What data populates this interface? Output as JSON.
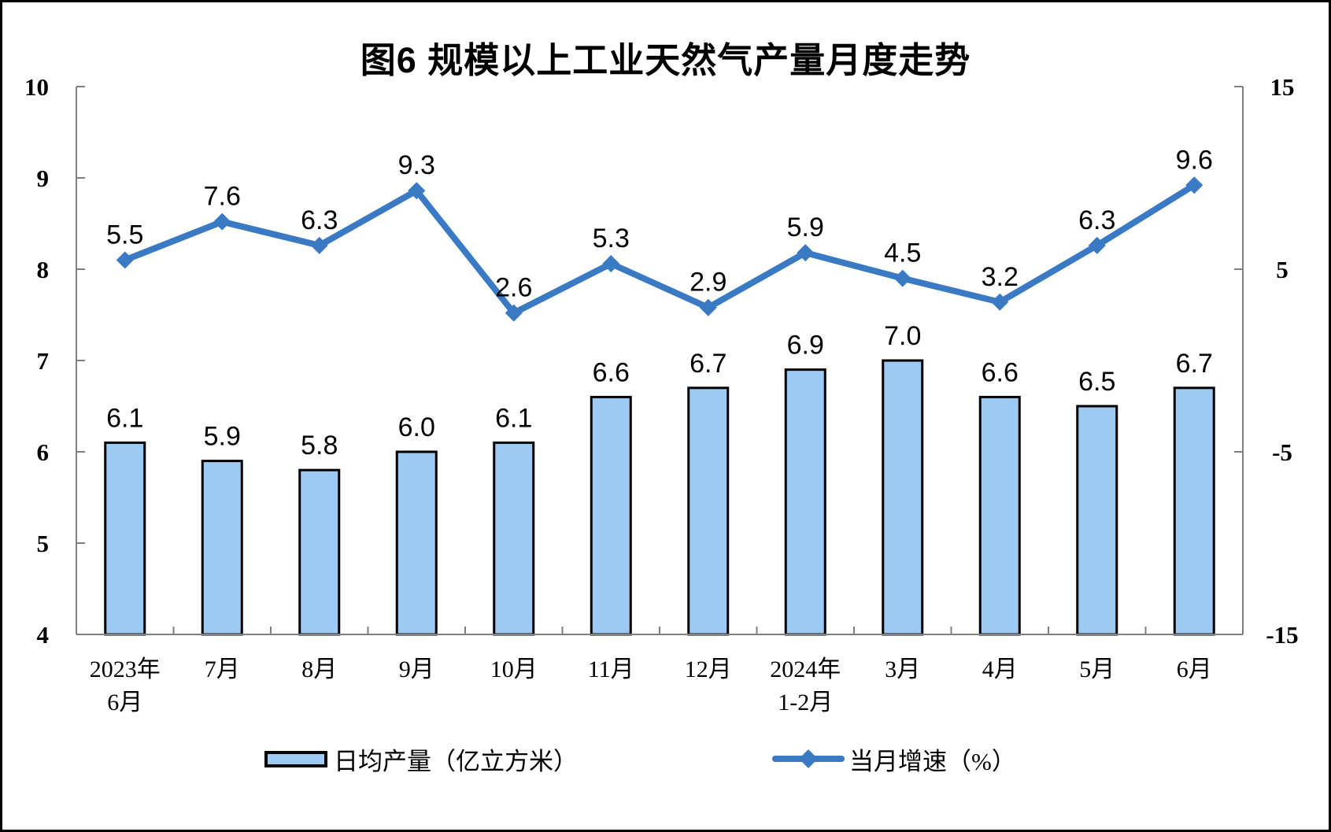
{
  "title": "图6 规模以上工业天然气产量月度走势",
  "legend": [
    {
      "type": "bar",
      "label": "日均产量（亿立方米）"
    },
    {
      "type": "line",
      "label": "当月增速（%）"
    }
  ],
  "colors": {
    "bar_fill": "#9CCAF2",
    "bar_border": "#000000",
    "line": "#3A79C3",
    "axis": "#808080",
    "text": "#000000"
  },
  "chart_data": {
    "type": "bar+line",
    "title": "图6 规模以上工业天然气产量月度走势",
    "categories": [
      [
        "2023年",
        "6月"
      ],
      [
        "7月"
      ],
      [
        "8月"
      ],
      [
        "9月"
      ],
      [
        "10月"
      ],
      [
        "11月"
      ],
      [
        "12月"
      ],
      [
        "2024年",
        "1-2月"
      ],
      [
        "3月"
      ],
      [
        "4月"
      ],
      [
        "5月"
      ],
      [
        "6月"
      ]
    ],
    "series": [
      {
        "name": "日均产量（亿立方米）",
        "type": "bar",
        "axis": "left",
        "values": [
          6.1,
          5.9,
          5.8,
          6.0,
          6.1,
          6.6,
          6.7,
          6.9,
          7.0,
          6.6,
          6.5,
          6.7
        ]
      },
      {
        "name": "当月增速（%）",
        "type": "line",
        "axis": "right",
        "values": [
          5.5,
          7.6,
          6.3,
          9.3,
          2.6,
          5.3,
          2.9,
          5.9,
          4.5,
          3.2,
          6.3,
          9.6
        ]
      }
    ],
    "left_axis": {
      "min": 4,
      "max": 10,
      "ticks": [
        4,
        5,
        6,
        7,
        8,
        9,
        10
      ]
    },
    "right_axis": {
      "min": -15,
      "max": 15,
      "ticks": [
        15,
        5,
        -5,
        -15
      ]
    },
    "grid": false,
    "legend_position": "bottom",
    "data_labels": true
  }
}
